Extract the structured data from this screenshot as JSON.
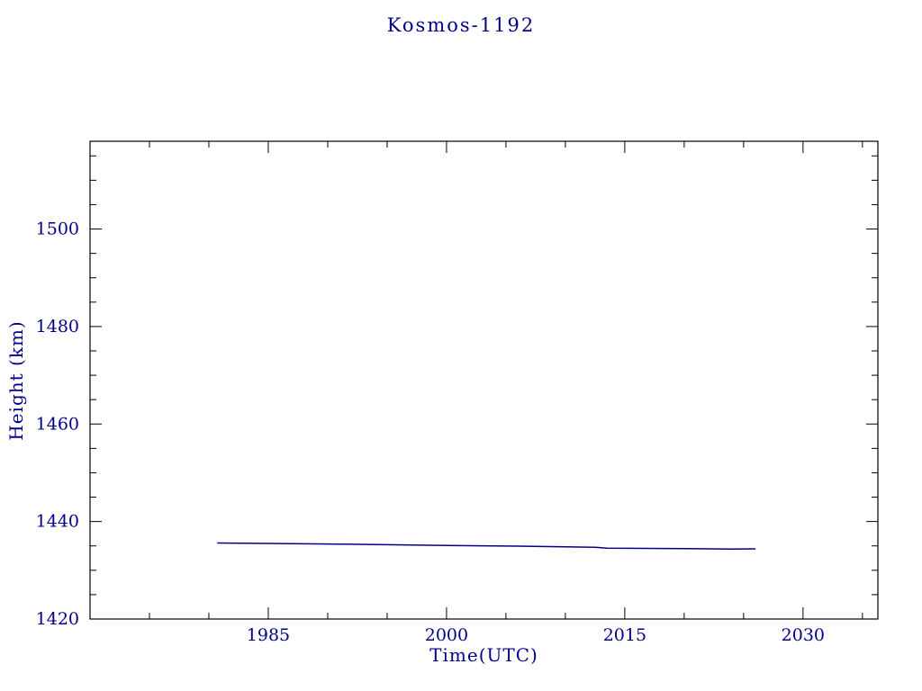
{
  "page": {
    "background": "#ffffff"
  },
  "chart_data": {
    "type": "line",
    "title": "Kosmos-1192",
    "xlabel": "Time(UTC)",
    "ylabel": "Height (km)",
    "xlim": [
      1970,
      2036.3
    ],
    "ylim": [
      1420,
      1518
    ],
    "x_major_ticks": [
      1985,
      2000,
      2015,
      2030
    ],
    "x_minor_step": 5,
    "y_major_ticks": [
      1420,
      1440,
      1460,
      1480,
      1500
    ],
    "y_minor_step": 5,
    "grid": false,
    "legend": "none",
    "colors": {
      "frame": "#000000",
      "text": "#00008b",
      "line": "#00008b"
    },
    "series": [
      {
        "name": "orbital-height",
        "color": "#00008b",
        "points": [
          [
            1980.7,
            1435.6
          ],
          [
            1985.0,
            1435.5
          ],
          [
            1990.0,
            1435.4
          ],
          [
            1995.0,
            1435.25
          ],
          [
            2000.0,
            1435.1
          ],
          [
            2006.0,
            1434.95
          ],
          [
            2012.5,
            1434.7
          ],
          [
            2013.5,
            1434.55
          ],
          [
            2020.0,
            1434.45
          ],
          [
            2024.0,
            1434.35
          ],
          [
            2026.0,
            1434.4
          ]
        ]
      }
    ]
  }
}
